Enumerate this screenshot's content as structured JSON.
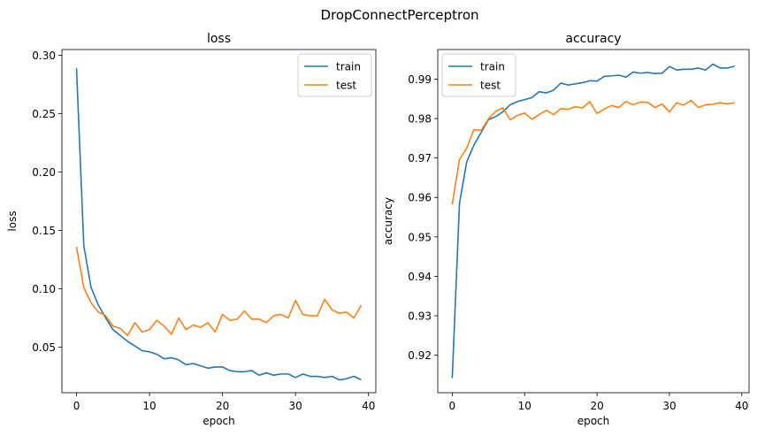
{
  "figure": {
    "suptitle": "DropConnectPerceptron"
  },
  "colors": {
    "train": "#1f77b4",
    "test": "#ff7f0e"
  },
  "chart_data": [
    {
      "type": "line",
      "title": "loss",
      "xlabel": "epoch",
      "ylabel": "loss",
      "xlim": [
        -2,
        41
      ],
      "ylim": [
        0.011,
        0.305
      ],
      "xticks": [
        0,
        10,
        20,
        30,
        40
      ],
      "yticks": [
        0.05,
        0.1,
        0.15,
        0.2,
        0.25,
        0.3
      ],
      "ytick_labels": [
        "0.05",
        "0.10",
        "0.15",
        "0.20",
        "0.25",
        "0.30"
      ],
      "legend": {
        "position": "top-right"
      },
      "x": [
        0,
        1,
        2,
        3,
        4,
        5,
        6,
        7,
        8,
        9,
        10,
        11,
        12,
        13,
        14,
        15,
        16,
        17,
        18,
        19,
        20,
        21,
        22,
        23,
        24,
        25,
        26,
        27,
        28,
        29,
        30,
        31,
        32,
        33,
        34,
        35,
        36,
        37,
        38,
        39
      ],
      "series": [
        {
          "name": "train",
          "values": [
            0.289,
            0.137,
            0.101,
            0.086,
            0.075,
            0.065,
            0.06,
            0.055,
            0.051,
            0.047,
            0.046,
            0.044,
            0.04,
            0.041,
            0.039,
            0.035,
            0.036,
            0.034,
            0.032,
            0.033,
            0.033,
            0.03,
            0.029,
            0.029,
            0.03,
            0.026,
            0.028,
            0.026,
            0.027,
            0.027,
            0.024,
            0.027,
            0.025,
            0.025,
            0.024,
            0.025,
            0.022,
            0.023,
            0.025,
            0.022
          ]
        },
        {
          "name": "test",
          "values": [
            0.136,
            0.101,
            0.088,
            0.08,
            0.077,
            0.068,
            0.066,
            0.06,
            0.071,
            0.063,
            0.065,
            0.073,
            0.068,
            0.061,
            0.075,
            0.065,
            0.069,
            0.067,
            0.071,
            0.063,
            0.078,
            0.073,
            0.074,
            0.081,
            0.074,
            0.074,
            0.071,
            0.077,
            0.078,
            0.075,
            0.09,
            0.078,
            0.077,
            0.077,
            0.091,
            0.082,
            0.079,
            0.08,
            0.075,
            0.086
          ]
        }
      ]
    },
    {
      "type": "line",
      "title": "accuracy",
      "xlabel": "epoch",
      "ylabel": "accuracy",
      "xlim": [
        -2,
        41
      ],
      "ylim": [
        0.9105,
        0.9975
      ],
      "xticks": [
        0,
        10,
        20,
        30,
        40
      ],
      "yticks": [
        0.92,
        0.93,
        0.94,
        0.95,
        0.96,
        0.97,
        0.98,
        0.99
      ],
      "ytick_labels": [
        "0.92",
        "0.93",
        "0.94",
        "0.95",
        "0.96",
        "0.97",
        "0.98",
        "0.99"
      ],
      "legend": {
        "position": "top-left"
      },
      "x": [
        0,
        1,
        2,
        3,
        4,
        5,
        6,
        7,
        8,
        9,
        10,
        11,
        12,
        13,
        14,
        15,
        16,
        17,
        18,
        19,
        20,
        21,
        22,
        23,
        24,
        25,
        26,
        27,
        28,
        29,
        30,
        31,
        32,
        33,
        34,
        35,
        36,
        37,
        38,
        39
      ],
      "series": [
        {
          "name": "train",
          "values": [
            0.9142,
            0.9585,
            0.969,
            0.9733,
            0.9765,
            0.9797,
            0.9805,
            0.9817,
            0.9835,
            0.9843,
            0.9848,
            0.9853,
            0.9868,
            0.9865,
            0.9872,
            0.989,
            0.9885,
            0.9888,
            0.9891,
            0.9896,
            0.9895,
            0.9907,
            0.9908,
            0.991,
            0.9905,
            0.9918,
            0.9915,
            0.9917,
            0.9914,
            0.9915,
            0.9932,
            0.9923,
            0.9925,
            0.9925,
            0.9928,
            0.9923,
            0.9938,
            0.9928,
            0.9928,
            0.9933
          ]
        },
        {
          "name": "test",
          "values": [
            0.9582,
            0.9696,
            0.9725,
            0.9772,
            0.977,
            0.9799,
            0.9818,
            0.9827,
            0.9797,
            0.9808,
            0.9814,
            0.9798,
            0.981,
            0.9821,
            0.981,
            0.9825,
            0.9823,
            0.983,
            0.9827,
            0.9843,
            0.9813,
            0.9824,
            0.9833,
            0.9828,
            0.9843,
            0.9835,
            0.9842,
            0.9841,
            0.9828,
            0.9837,
            0.9817,
            0.984,
            0.9834,
            0.9846,
            0.9828,
            0.9835,
            0.9836,
            0.984,
            0.9837,
            0.984
          ]
        }
      ]
    }
  ]
}
